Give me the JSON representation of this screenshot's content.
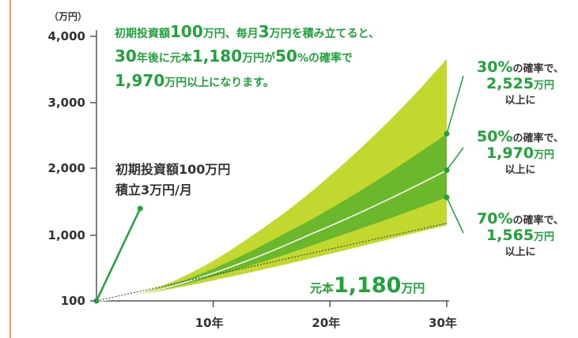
{
  "headline": {
    "line1a": "初期投資額",
    "line1b": "100",
    "line1c": "万円、毎月",
    "line1d": "3",
    "line1e": "万円を積み立てると、",
    "line2a": "30",
    "line2b": "年後に元本",
    "line2c": "1,180",
    "line2d": "万円が",
    "line2e": "50",
    "line2f": "%の確率で",
    "line3a": "1,970",
    "line3b": "万円以上になります。"
  },
  "note": {
    "line1": "初期投資額100万円",
    "line2": "積立3万円/月"
  },
  "principal": {
    "prefix": "元本",
    "value": "1,180",
    "unit": "万円"
  },
  "callouts": [
    {
      "pct": "30%",
      "suffix": "の確率で、",
      "value": "2,525",
      "unit": "万円",
      "tail": "以上に"
    },
    {
      "pct": "50%",
      "suffix": "の確率で、",
      "value": "1,970",
      "unit": "万円",
      "tail": "以上に"
    },
    {
      "pct": "70%",
      "suffix": "の確率で、",
      "value": "1,565",
      "unit": "万円",
      "tail": "以上に"
    }
  ],
  "colors": {
    "outer_band": "#c3d82f",
    "inner_band": "#6cb82d",
    "accent": "#1fa33a",
    "axis": "#f29a5b"
  },
  "chart_data": {
    "type": "area",
    "y_unit_label": "（万円）",
    "y_ticks": [
      100,
      1000,
      2000,
      3000,
      4000
    ],
    "y_tick_labels": [
      "100",
      "1,000",
      "2,000",
      "3,000",
      "4,000"
    ],
    "x_ticks": [
      10,
      20,
      30
    ],
    "x_tick_labels": [
      "10年",
      "20年",
      "30年"
    ],
    "xlim": [
      0,
      30
    ],
    "ylim": [
      100,
      4000
    ],
    "series": [
      {
        "x": [
          0,
          30
        ],
        "values": [
          100,
          3660
        ]
      },
      {
        "x": [
          0,
          30
        ],
        "values": [
          100,
          2525
        ]
      },
      {
        "x": [
          0,
          30
        ],
        "values": [
          100,
          1970
        ]
      },
      {
        "x": [
          0,
          30
        ],
        "values": [
          100,
          1565
        ]
      },
      {
        "x": [
          0,
          30
        ],
        "values": [
          100,
          1150
        ]
      },
      {
        "x": [
          0,
          30
        ],
        "values": [
          100,
          1180
        ]
      }
    ],
    "contribution_line": {
      "x": [
        0,
        3
      ],
      "values": [
        100,
        1400
      ]
    }
  }
}
